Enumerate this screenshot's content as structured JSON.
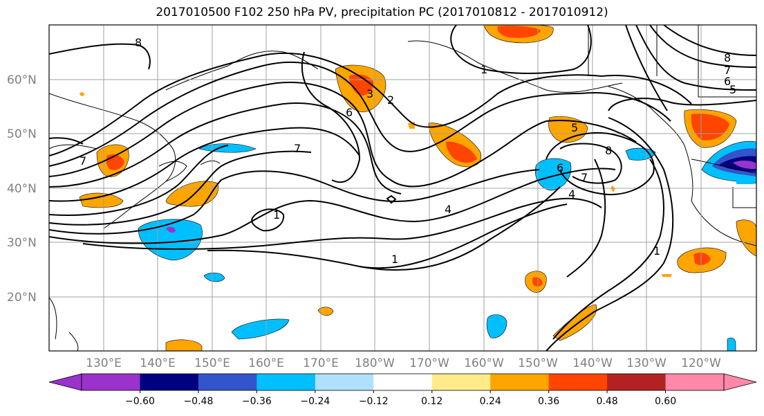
{
  "title": "2017010500 F102 250 hPa PV, precipitation PC (2017010812 - 2017010912)",
  "lat_labels": [
    "60°N",
    "50°N",
    "40°N",
    "30°N",
    "20°N"
  ],
  "lon_labels": [
    "130°E",
    "140°E",
    "150°E",
    "160°E",
    "170°E",
    "180°W",
    "170°W",
    "160°W",
    "150°W",
    "140°W",
    "130°W",
    "120°W"
  ],
  "contour_labels": [
    "8",
    "1",
    "8",
    "7",
    "6",
    "5",
    "3",
    "2",
    "6",
    "7",
    "7",
    "5",
    "8",
    "6",
    "7",
    "4",
    "1",
    "4",
    "1",
    "1"
  ],
  "colorbar": {
    "colors": [
      "#9933cc",
      "#000080",
      "#3355cc",
      "#00bfff",
      "#b0e0ff",
      "#ffffff",
      "#ffeb8a",
      "#ffa500",
      "#ff4500",
      "#b22222",
      "#ff88aa"
    ],
    "tick_labels": [
      "−0.60",
      "−0.48",
      "−0.36",
      "−0.24",
      "−0.12",
      "0.12",
      "0.24",
      "0.36",
      "0.48",
      "0.60"
    ]
  },
  "colors": {
    "grid": "#a0a0a0",
    "contour": "#000000",
    "coast": "#000000"
  }
}
